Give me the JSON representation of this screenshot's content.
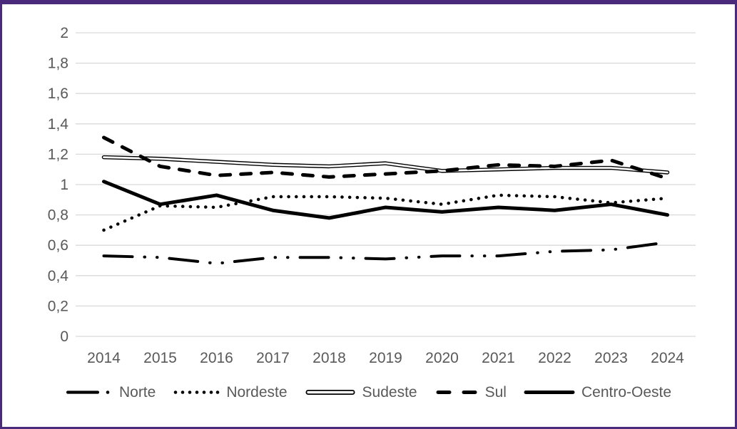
{
  "figure": {
    "background_color": "#ffffff",
    "border_color": "#4a2a7a"
  },
  "chart_data": {
    "type": "line",
    "title": "",
    "xlabel": "",
    "ylabel": "",
    "x": [
      "2014",
      "2015",
      "2016",
      "2017",
      "2018",
      "2019",
      "2020",
      "2021",
      "2022",
      "2023",
      "2024"
    ],
    "series": [
      {
        "name": "Norte",
        "style": "long-dash-dot-dot",
        "color": "#000000",
        "values": [
          0.53,
          0.52,
          0.48,
          0.52,
          0.52,
          0.51,
          0.53,
          0.53,
          0.56,
          0.57,
          0.62
        ]
      },
      {
        "name": "Nordeste",
        "style": "dotted",
        "color": "#000000",
        "values": [
          0.7,
          0.86,
          0.85,
          0.92,
          0.92,
          0.91,
          0.87,
          0.93,
          0.92,
          0.88,
          0.91
        ]
      },
      {
        "name": "Sudeste",
        "style": "double-line",
        "color": "#000000",
        "values": [
          1.18,
          1.17,
          1.15,
          1.13,
          1.12,
          1.14,
          1.09,
          1.1,
          1.11,
          1.11,
          1.08
        ]
      },
      {
        "name": "Sul",
        "style": "dashed",
        "color": "#000000",
        "values": [
          1.31,
          1.12,
          1.06,
          1.08,
          1.05,
          1.07,
          1.09,
          1.13,
          1.12,
          1.16,
          1.04
        ]
      },
      {
        "name": "Centro-Oeste",
        "style": "solid",
        "color": "#000000",
        "values": [
          1.02,
          0.87,
          0.93,
          0.83,
          0.78,
          0.85,
          0.82,
          0.85,
          0.83,
          0.87,
          0.8
        ]
      }
    ],
    "ylim": [
      0,
      2
    ],
    "ytick_step": 0.2,
    "ytick_labels": [
      "0",
      "0,2",
      "0,4",
      "0,6",
      "0,8",
      "1",
      "1,2",
      "1,4",
      "1,6",
      "1,8",
      "2"
    ],
    "grid": true,
    "gridline_color": "#d9d9d9",
    "tick_label_color": "#595959",
    "legend_position": "bottom"
  }
}
